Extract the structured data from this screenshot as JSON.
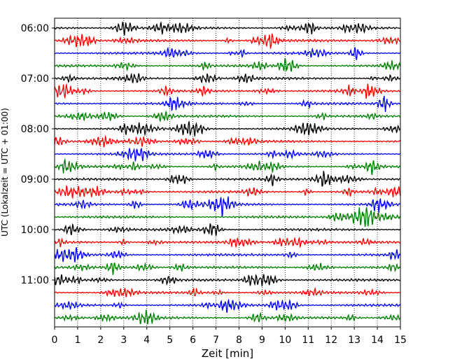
{
  "chart_data": {
    "type": "line",
    "title": "",
    "xlabel": "Zeit  [min]",
    "ylabel": "UTC (Lokalzeit = UTC + 01:00)",
    "xlim": [
      0,
      15
    ],
    "x_ticks": [
      "0",
      "1",
      "2",
      "3",
      "4",
      "5",
      "6",
      "7",
      "8",
      "9",
      "10",
      "11",
      "12",
      "13",
      "14",
      "15"
    ],
    "y_tick_labels": [
      "06:00",
      "07:00",
      "08:00",
      "09:00",
      "10:00",
      "11:00"
    ],
    "grid": "vertical-dotted",
    "trace_interval_minutes": 15,
    "row_colors": [
      "#000000",
      "#ff0000",
      "#0000ff",
      "#008000"
    ],
    "series": [
      {
        "start": "06:00",
        "color": "#000000"
      },
      {
        "start": "06:15",
        "color": "#ff0000"
      },
      {
        "start": "06:30",
        "color": "#0000ff"
      },
      {
        "start": "06:45",
        "color": "#008000"
      },
      {
        "start": "07:00",
        "color": "#000000"
      },
      {
        "start": "07:15",
        "color": "#ff0000"
      },
      {
        "start": "07:30",
        "color": "#0000ff"
      },
      {
        "start": "07:45",
        "color": "#008000"
      },
      {
        "start": "08:00",
        "color": "#000000"
      },
      {
        "start": "08:15",
        "color": "#ff0000"
      },
      {
        "start": "08:30",
        "color": "#0000ff"
      },
      {
        "start": "08:45",
        "color": "#008000"
      },
      {
        "start": "09:00",
        "color": "#000000"
      },
      {
        "start": "09:15",
        "color": "#ff0000"
      },
      {
        "start": "09:30",
        "color": "#0000ff"
      },
      {
        "start": "09:45",
        "color": "#008000"
      },
      {
        "start": "10:00",
        "color": "#000000"
      },
      {
        "start": "10:15",
        "color": "#ff0000"
      },
      {
        "start": "10:30",
        "color": "#0000ff"
      },
      {
        "start": "10:45",
        "color": "#008000"
      },
      {
        "start": "11:00",
        "color": "#000000"
      },
      {
        "start": "11:15",
        "color": "#ff0000"
      },
      {
        "start": "11:30",
        "color": "#0000ff"
      },
      {
        "start": "11:45",
        "color": "#008000"
      }
    ]
  }
}
